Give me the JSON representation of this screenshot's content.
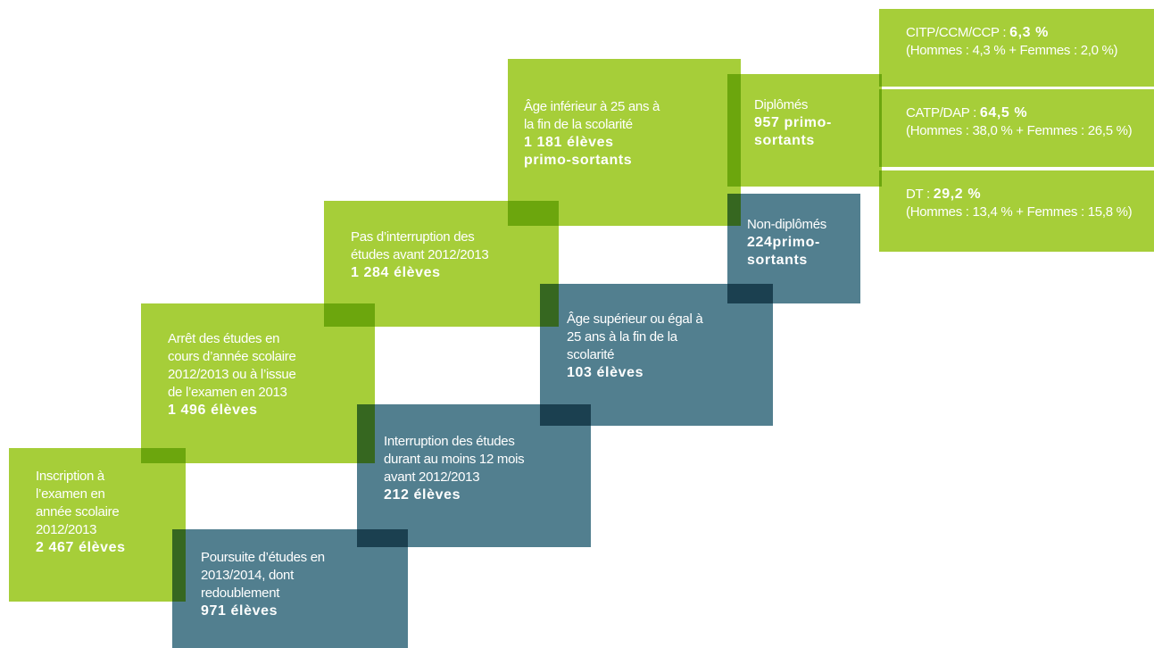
{
  "boxes": [
    {
      "lines": [
        "Inscription à",
        "l’examen en",
        "année scolaire",
        "2012/2013"
      ],
      "bold": [
        "2 467 élèves"
      ]
    },
    {
      "lines": [
        "Poursuite d’études en",
        "2013/2014, dont",
        "redoublement"
      ],
      "bold": [
        "971 élèves"
      ]
    },
    {
      "lines": [
        "Arrêt des études en",
        "cours d’année scolaire",
        "2012/2013 ou à l’issue",
        "de l’examen en 2013"
      ],
      "bold": [
        "1 496 élèves"
      ]
    },
    {
      "lines": [
        "Interruption des études",
        "durant au moins 12 mois",
        "avant 2012/2013"
      ],
      "bold": [
        "212 élèves"
      ]
    },
    {
      "lines": [
        "Pas d’interruption des",
        "études avant 2012/2013"
      ],
      "bold": [
        "1 284 élèves"
      ]
    },
    {
      "lines": [
        "Âge supérieur ou égal à",
        "25 ans à la fin de la",
        "scolarité"
      ],
      "bold": [
        "103 élèves"
      ]
    },
    {
      "lines": [
        "Âge inférieur à 25 ans à",
        "la fin de la scolarité"
      ],
      "bold": [
        "1 181 élèves",
        "primo-sortants"
      ]
    },
    {
      "lines": [
        "Diplômés"
      ],
      "bold": [
        "957 primo-",
        "sortants"
      ]
    },
    {
      "lines": [
        "Non-diplômés"
      ],
      "bold": [
        "224primo-",
        "sortants"
      ]
    }
  ],
  "diplomas": [
    {
      "label": "CITP/CCM/CCP : ",
      "value": "6,3 %",
      "detail": "(Hommes : 4,3 % + Femmes : 2,0 %)"
    },
    {
      "label": "CATP/DAP : ",
      "value": "64,5 %",
      "detail": "(Hommes : 38,0 % + Femmes : 26,5 %)"
    },
    {
      "label": "DT : ",
      "value": "29,2 %",
      "detail": "(Hommes : 13,4 % + Femmes : 15,8 %)"
    }
  ]
}
